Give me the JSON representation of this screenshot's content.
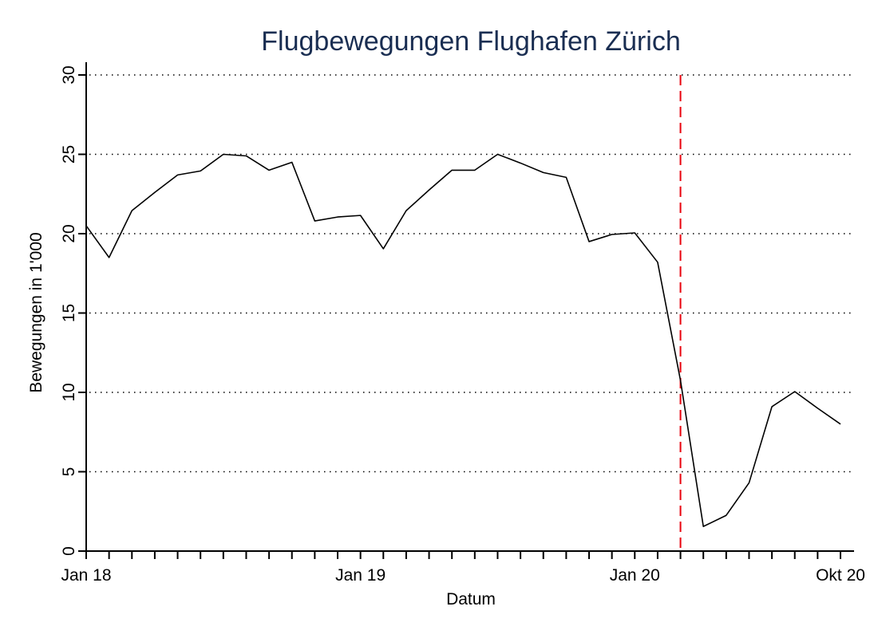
{
  "chart_data": {
    "type": "line",
    "title": "Flugbewegungen Flughafen Zürich",
    "xlabel": "Datum",
    "ylabel": "Bewegungen in 1'000",
    "ylim": [
      0,
      30
    ],
    "yticks": [
      0,
      5,
      10,
      15,
      20,
      25,
      30
    ],
    "xlim": [
      "2018-01",
      "2020-10"
    ],
    "xtick_labels": [
      {
        "x": "2018-01",
        "label": "Jan 18"
      },
      {
        "x": "2019-01",
        "label": "Jan 19"
      },
      {
        "x": "2020-01",
        "label": "Jan 20"
      },
      {
        "x": "2020-10",
        "label": "Okt 20"
      }
    ],
    "minor_ticks": "monthly",
    "grid": "horizontal dotted",
    "x": [
      "2018-01",
      "2018-02",
      "2018-03",
      "2018-04",
      "2018-05",
      "2018-06",
      "2018-07",
      "2018-08",
      "2018-09",
      "2018-10",
      "2018-11",
      "2018-12",
      "2019-01",
      "2019-02",
      "2019-03",
      "2019-04",
      "2019-05",
      "2019-06",
      "2019-07",
      "2019-08",
      "2019-09",
      "2019-10",
      "2019-11",
      "2019-12",
      "2020-01",
      "2020-02",
      "2020-03",
      "2020-04",
      "2020-05",
      "2020-06",
      "2020-07",
      "2020-08",
      "2020-09",
      "2020-10"
    ],
    "series": [
      {
        "values": [
          20.5,
          18.5,
          21.45,
          22.6,
          23.7,
          23.95,
          25.0,
          24.9,
          24.0,
          24.5,
          20.8,
          21.05,
          21.15,
          19.05,
          21.45,
          22.75,
          24.0,
          24.0,
          25.0,
          24.45,
          23.85,
          23.55,
          19.5,
          19.95,
          20.05,
          18.2,
          10.75,
          1.55,
          2.25,
          4.3,
          9.1,
          10.05,
          9.0,
          8.0
        ],
        "color": "#000000"
      }
    ],
    "reference_line": {
      "x": "2020-03",
      "color": "#e8000b",
      "style": "dashed"
    }
  }
}
